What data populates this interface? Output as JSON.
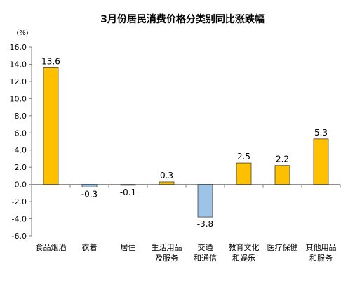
{
  "chart_data": {
    "type": "bar",
    "title": "3月份居民消费价格分类别同比涨跌幅",
    "unit": "(%)",
    "categories": [
      [
        "食品烟酒"
      ],
      [
        "衣着"
      ],
      [
        "居住"
      ],
      [
        "生活用品",
        "及服务"
      ],
      [
        "交通",
        "和通信"
      ],
      [
        "教育文化",
        "和娱乐"
      ],
      [
        "医疗保健"
      ],
      [
        "其他用品",
        "和服务"
      ]
    ],
    "values": [
      13.6,
      -0.3,
      -0.1,
      0.3,
      -3.8,
      2.5,
      2.2,
      5.3
    ],
    "data_labels": [
      "13.6",
      "-0.3",
      "-0.1",
      "0.3",
      "-3.8",
      "2.5",
      "2.2",
      "5.3"
    ],
    "ylim": [
      -6,
      16
    ],
    "yticks": [
      16,
      14,
      12,
      10,
      8,
      6,
      4,
      2,
      0,
      -2,
      -4,
      -6
    ],
    "ytick_labels": [
      "16.0",
      "14.0",
      "12.0",
      "10.0",
      "8.0",
      "6.0",
      "4.0",
      "2.0",
      "0.0",
      "-2.0",
      "-4.0",
      "-6.0"
    ],
    "grid": false,
    "colors": {
      "positive": "#FFC000",
      "negative": "#9DC3E6",
      "bar_stroke": "#404040",
      "axis": "#808080"
    }
  }
}
